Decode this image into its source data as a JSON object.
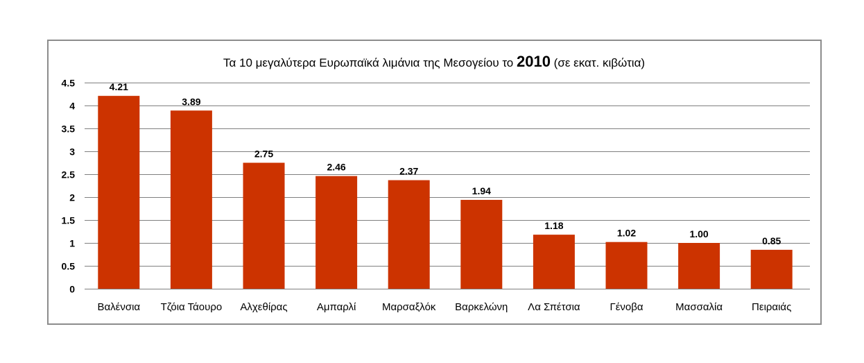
{
  "chart_data": {
    "type": "bar",
    "title": {
      "before": "Τα 10 μεγαλύτερα Ευρωπαϊκά λιμάνια της Μεσογείου το ",
      "year": "2010",
      "after": " (σε εκατ. κιβώτια)"
    },
    "xlabel": "",
    "ylabel": "",
    "ylim": [
      0,
      4.5
    ],
    "yticks": [
      "0",
      "0.5",
      "1",
      "1.5",
      "2",
      "2.5",
      "3",
      "3.5",
      "4",
      "4.5"
    ],
    "grid": true,
    "legend": "none",
    "categories": [
      "Βαλένσια",
      "Τζόια Τάουρο",
      "Αλχεθίρας",
      "Αμπαρλί",
      "Μαρσαξλόκ",
      "Βαρκελώνη",
      "Λα Σπέτσια",
      "Γένοβα",
      "Μασσαλία",
      "Πειραιάς"
    ],
    "values": [
      4.21,
      3.89,
      2.75,
      2.46,
      2.37,
      1.94,
      1.18,
      1.02,
      1.0,
      0.85
    ],
    "data_labels": [
      "4.21",
      "3.89",
      "2.75",
      "2.46",
      "2.37",
      "1.94",
      "1.18",
      "1.02",
      "1.00",
      "0.85"
    ],
    "bar_color": "#cc3300",
    "grid_color": "#7f7f7f"
  }
}
